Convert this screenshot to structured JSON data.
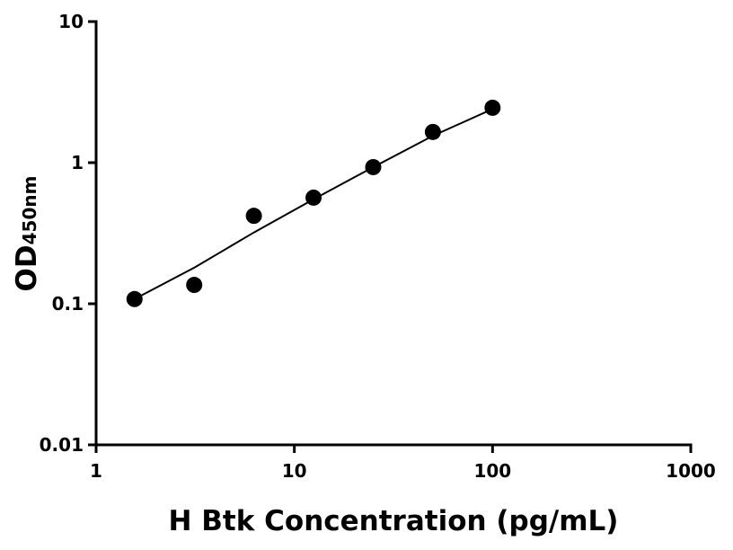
{
  "chart_data": {
    "type": "scatter",
    "xlabel": "H Btk Concentration (pg/mL)",
    "ylabel": {
      "main": "OD",
      "sub": "450nm"
    },
    "xscale": "log",
    "yscale": "log",
    "xlim": [
      1,
      1000
    ],
    "xticks": [
      1,
      10,
      100,
      1000
    ],
    "ylim": [
      0.01,
      10
    ],
    "yticks": [
      0.01,
      0.1,
      1,
      10
    ],
    "series": [
      {
        "type": "scatter",
        "color": "#000000",
        "x": [
          1.5625,
          3.125,
          6.25,
          12.5,
          25,
          50,
          100
        ],
        "values": [
          0.108,
          0.136,
          0.42,
          0.565,
          0.93,
          1.65,
          2.45
        ]
      },
      {
        "type": "line",
        "color": "#000000",
        "x": [
          1.5625,
          3.125,
          6.25,
          12.5,
          25,
          50,
          100
        ],
        "values": [
          0.108,
          0.18,
          0.32,
          0.55,
          0.93,
          1.55,
          2.4
        ]
      }
    ]
  }
}
